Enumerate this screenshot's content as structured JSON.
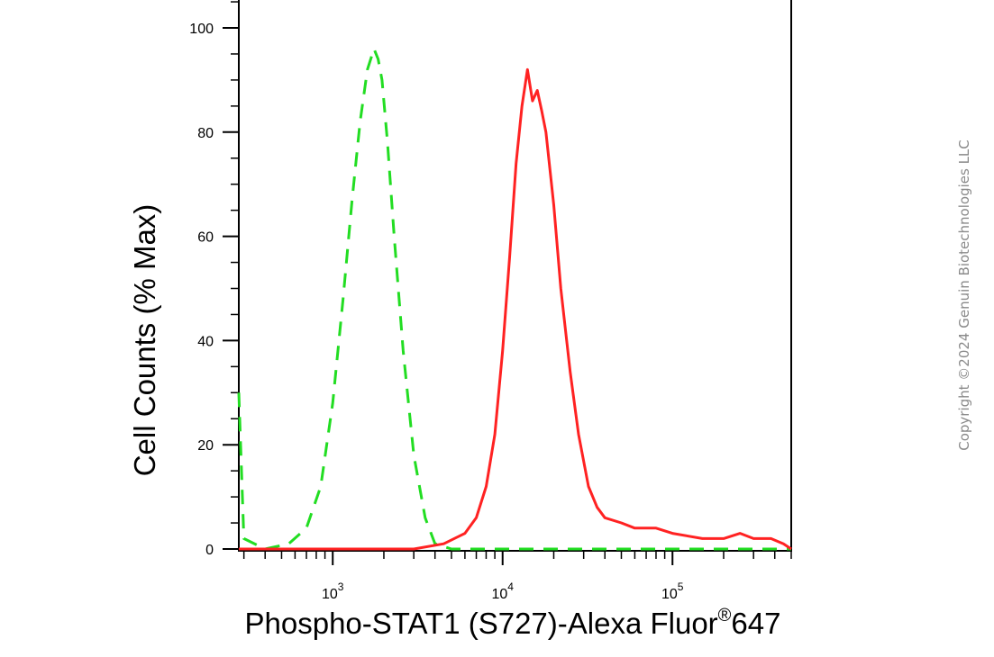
{
  "chart_data": {
    "type": "line",
    "title": "",
    "xlabel": "Phospho-STAT1 (S727)-Alexa Fluor",
    "xlabel_superscript": "®",
    "xlabel_suffix": "647",
    "ylabel": "Cell Counts (% Max)",
    "xscale": "log",
    "xlim": [
      280,
      500000
    ],
    "ylim": [
      0,
      105
    ],
    "grid": false,
    "legend": "none",
    "y_ticks": [
      "0",
      "20",
      "40",
      "60",
      "80",
      "100"
    ],
    "x_ticks": [
      {
        "base": "10",
        "exp": "3"
      },
      {
        "base": "10",
        "exp": "4"
      },
      {
        "base": "10",
        "exp": "5"
      }
    ],
    "series": [
      {
        "color": "#22dd22",
        "style": "dashed",
        "x": [
          280,
          300,
          400,
          550,
          700,
          850,
          1000,
          1150,
          1300,
          1450,
          1600,
          1750,
          1850,
          1950,
          2100,
          2300,
          2600,
          3000,
          3500,
          4000,
          5000,
          10000,
          100000,
          500000
        ],
        "y": [
          30,
          2,
          0,
          1,
          4,
          12,
          28,
          48,
          67,
          82,
          92,
          96,
          94,
          90,
          78,
          60,
          38,
          18,
          6,
          1,
          0,
          0,
          0,
          0
        ]
      },
      {
        "color": "#ff2222",
        "style": "solid",
        "x": [
          280,
          3000,
          4500,
          6000,
          7000,
          8000,
          9000,
          10000,
          11000,
          12000,
          13000,
          14000,
          15000,
          16000,
          17000,
          18000,
          20000,
          22000,
          25000,
          28000,
          32000,
          36000,
          40000,
          50000,
          60000,
          80000,
          100000,
          150000,
          200000,
          250000,
          300000,
          380000,
          450000,
          500000
        ],
        "y": [
          0,
          0,
          1,
          3,
          6,
          12,
          22,
          38,
          56,
          74,
          85,
          92,
          86,
          88,
          84,
          80,
          66,
          50,
          34,
          22,
          12,
          8,
          6,
          5,
          4,
          4,
          3,
          2,
          2,
          3,
          2,
          2,
          1,
          0
        ]
      }
    ]
  },
  "copyright": "Copyright ©2024 Genuin Biotechnologies LLC"
}
